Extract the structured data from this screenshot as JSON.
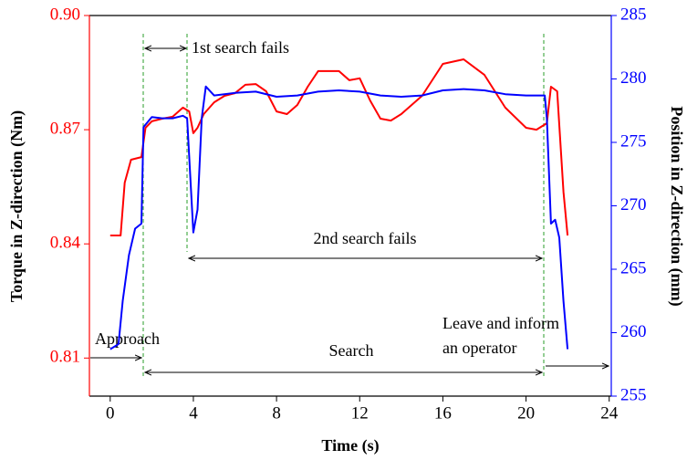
{
  "chart_data": {
    "type": "line",
    "xlabel": "Time (s)",
    "ylabel": "Torque in Z-direction (Nm)",
    "y2label": "Position in Z-direction (mm)",
    "xlim": [
      -1,
      24.1
    ],
    "xticks": [
      0,
      4,
      8,
      12,
      16,
      20,
      24
    ],
    "ylim": [
      0.8,
      0.9
    ],
    "yticks": [
      {
        "value": 0.81,
        "label": "0.81"
      },
      {
        "value": 0.84,
        "label": "0.84"
      },
      {
        "value": 0.87,
        "label": "0.87"
      },
      {
        "value": 0.9,
        "label": "0.90"
      }
    ],
    "y2lim": [
      255,
      285
    ],
    "y2ticks": [
      255,
      260,
      265,
      270,
      275,
      280,
      285
    ],
    "ycolor": "#ff0000",
    "y2color": "#0000ff",
    "series": [
      {
        "color": "#ff0000",
        "axis": "y",
        "x": [
          0,
          0.5,
          0.7,
          1,
          1.5,
          1.7,
          2,
          2.5,
          3,
          3.5,
          3.8,
          4,
          4.2,
          4.5,
          5,
          5.5,
          6,
          6.5,
          7,
          7.5,
          8,
          8.5,
          9,
          9.5,
          10,
          11,
          11.5,
          12,
          12.5,
          13,
          13.5,
          14,
          15,
          16,
          17,
          18,
          19,
          20,
          20.5,
          21,
          21.2,
          21.5,
          21.8,
          22
        ],
        "values": [
          0.8422,
          0.8422,
          0.8561,
          0.8621,
          0.8628,
          0.8705,
          0.8722,
          0.8729,
          0.8734,
          0.8758,
          0.8748,
          0.8691,
          0.8705,
          0.8741,
          0.8772,
          0.8789,
          0.8796,
          0.8818,
          0.882,
          0.8801,
          0.8748,
          0.8741,
          0.8765,
          0.8813,
          0.8854,
          0.8854,
          0.883,
          0.8835,
          0.8777,
          0.8729,
          0.8724,
          0.8741,
          0.8789,
          0.8873,
          0.8885,
          0.8844,
          0.8758,
          0.8705,
          0.87,
          0.8717,
          0.8813,
          0.8801,
          0.8537,
          0.8422
        ]
      },
      {
        "color": "#0000ff",
        "axis": "y2",
        "x": [
          0,
          0.4,
          0.6,
          0.9,
          1.2,
          1.5,
          1.6,
          2,
          2.5,
          3,
          3.5,
          3.7,
          4,
          4.2,
          4.4,
          4.6,
          5,
          6,
          7,
          8,
          9,
          10,
          11,
          12,
          13,
          14,
          15,
          16,
          17,
          18,
          19,
          20,
          20.9,
          21,
          21.2,
          21.4,
          21.6,
          21.8,
          22
        ],
        "values": [
          258.7,
          259.1,
          262.5,
          266.1,
          268.2,
          268.6,
          276.2,
          277.0,
          276.9,
          276.9,
          277.1,
          276.9,
          267.9,
          269.7,
          276.9,
          279.4,
          278.7,
          278.9,
          279.0,
          278.6,
          278.7,
          279.0,
          279.1,
          279.0,
          278.7,
          278.6,
          278.7,
          279.1,
          279.2,
          279.1,
          278.8,
          278.7,
          278.7,
          276.9,
          268.6,
          268.9,
          267.5,
          262.5,
          258.7
        ]
      }
    ],
    "annotations": [
      "1st search fails",
      "2nd search fails",
      "Approach",
      "Search",
      "Leave and inform",
      "an operator"
    ]
  }
}
